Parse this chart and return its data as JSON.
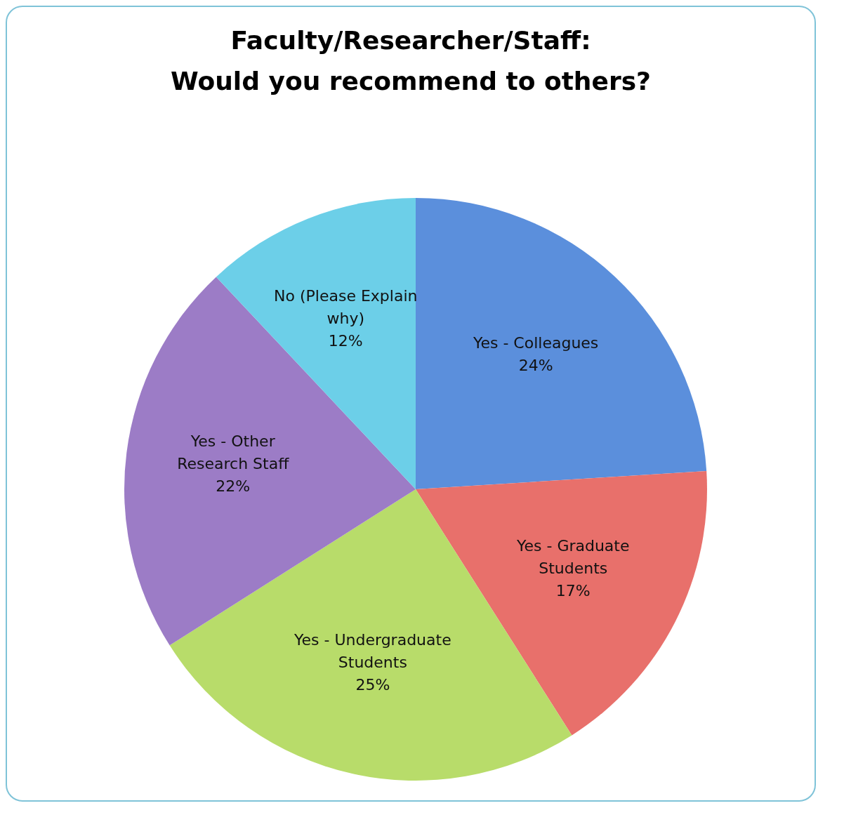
{
  "chart_data": {
    "type": "pie",
    "title": "Faculty/Researcher/Staff:\nWould you recommend to others?",
    "categories": [
      "Yes - Colleagues",
      "Yes - Graduate Students",
      "Yes - Undergraduate Students",
      "Yes - Other Research Staff",
      "No (Please Explain why)"
    ],
    "values": [
      24,
      17,
      25,
      22,
      12
    ],
    "value_labels": [
      "24%",
      "17%",
      "25%",
      "22%",
      "12%"
    ],
    "colors": [
      "#5b8fdc",
      "#e8706b",
      "#b8dc6a",
      "#9c7cc6",
      "#6ccfe8"
    ]
  }
}
